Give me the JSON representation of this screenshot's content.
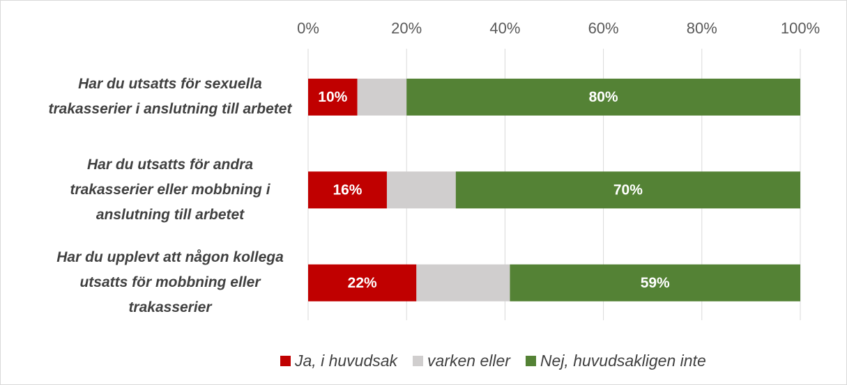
{
  "chart_data": {
    "type": "stacked-bar-horizontal",
    "categories": [
      "Har du utsatts för sexuella trakasserier i anslutning till arbetet",
      "Har du utsatts för andra trakasserier eller mobbning i anslutning till arbetet",
      "Har du upplevt att någon kollega utsatts för mobbning eller trakasserier"
    ],
    "series": [
      {
        "name": "Ja, i huvudsak",
        "color": "#c00000",
        "values": [
          10,
          16,
          22
        ],
        "value_labels": [
          "10%",
          "16%",
          "22%"
        ]
      },
      {
        "name": "varken eller",
        "color": "#d0cece",
        "values": [
          10,
          14,
          19
        ]
      },
      {
        "name": "Nej, huvudsakligen inte",
        "color": "#548235",
        "values": [
          80,
          70,
          59
        ],
        "value_labels": [
          "80%",
          "70%",
          "59%"
        ]
      }
    ],
    "xlim": [
      0,
      100
    ],
    "xticks": [
      {
        "value": 0,
        "label": "0%"
      },
      {
        "value": 20,
        "label": "20%"
      },
      {
        "value": 40,
        "label": "40%"
      },
      {
        "value": 60,
        "label": "60%"
      },
      {
        "value": 80,
        "label": "80%"
      },
      {
        "value": 100,
        "label": "100%"
      }
    ],
    "grid": true,
    "legend": "bottom"
  }
}
